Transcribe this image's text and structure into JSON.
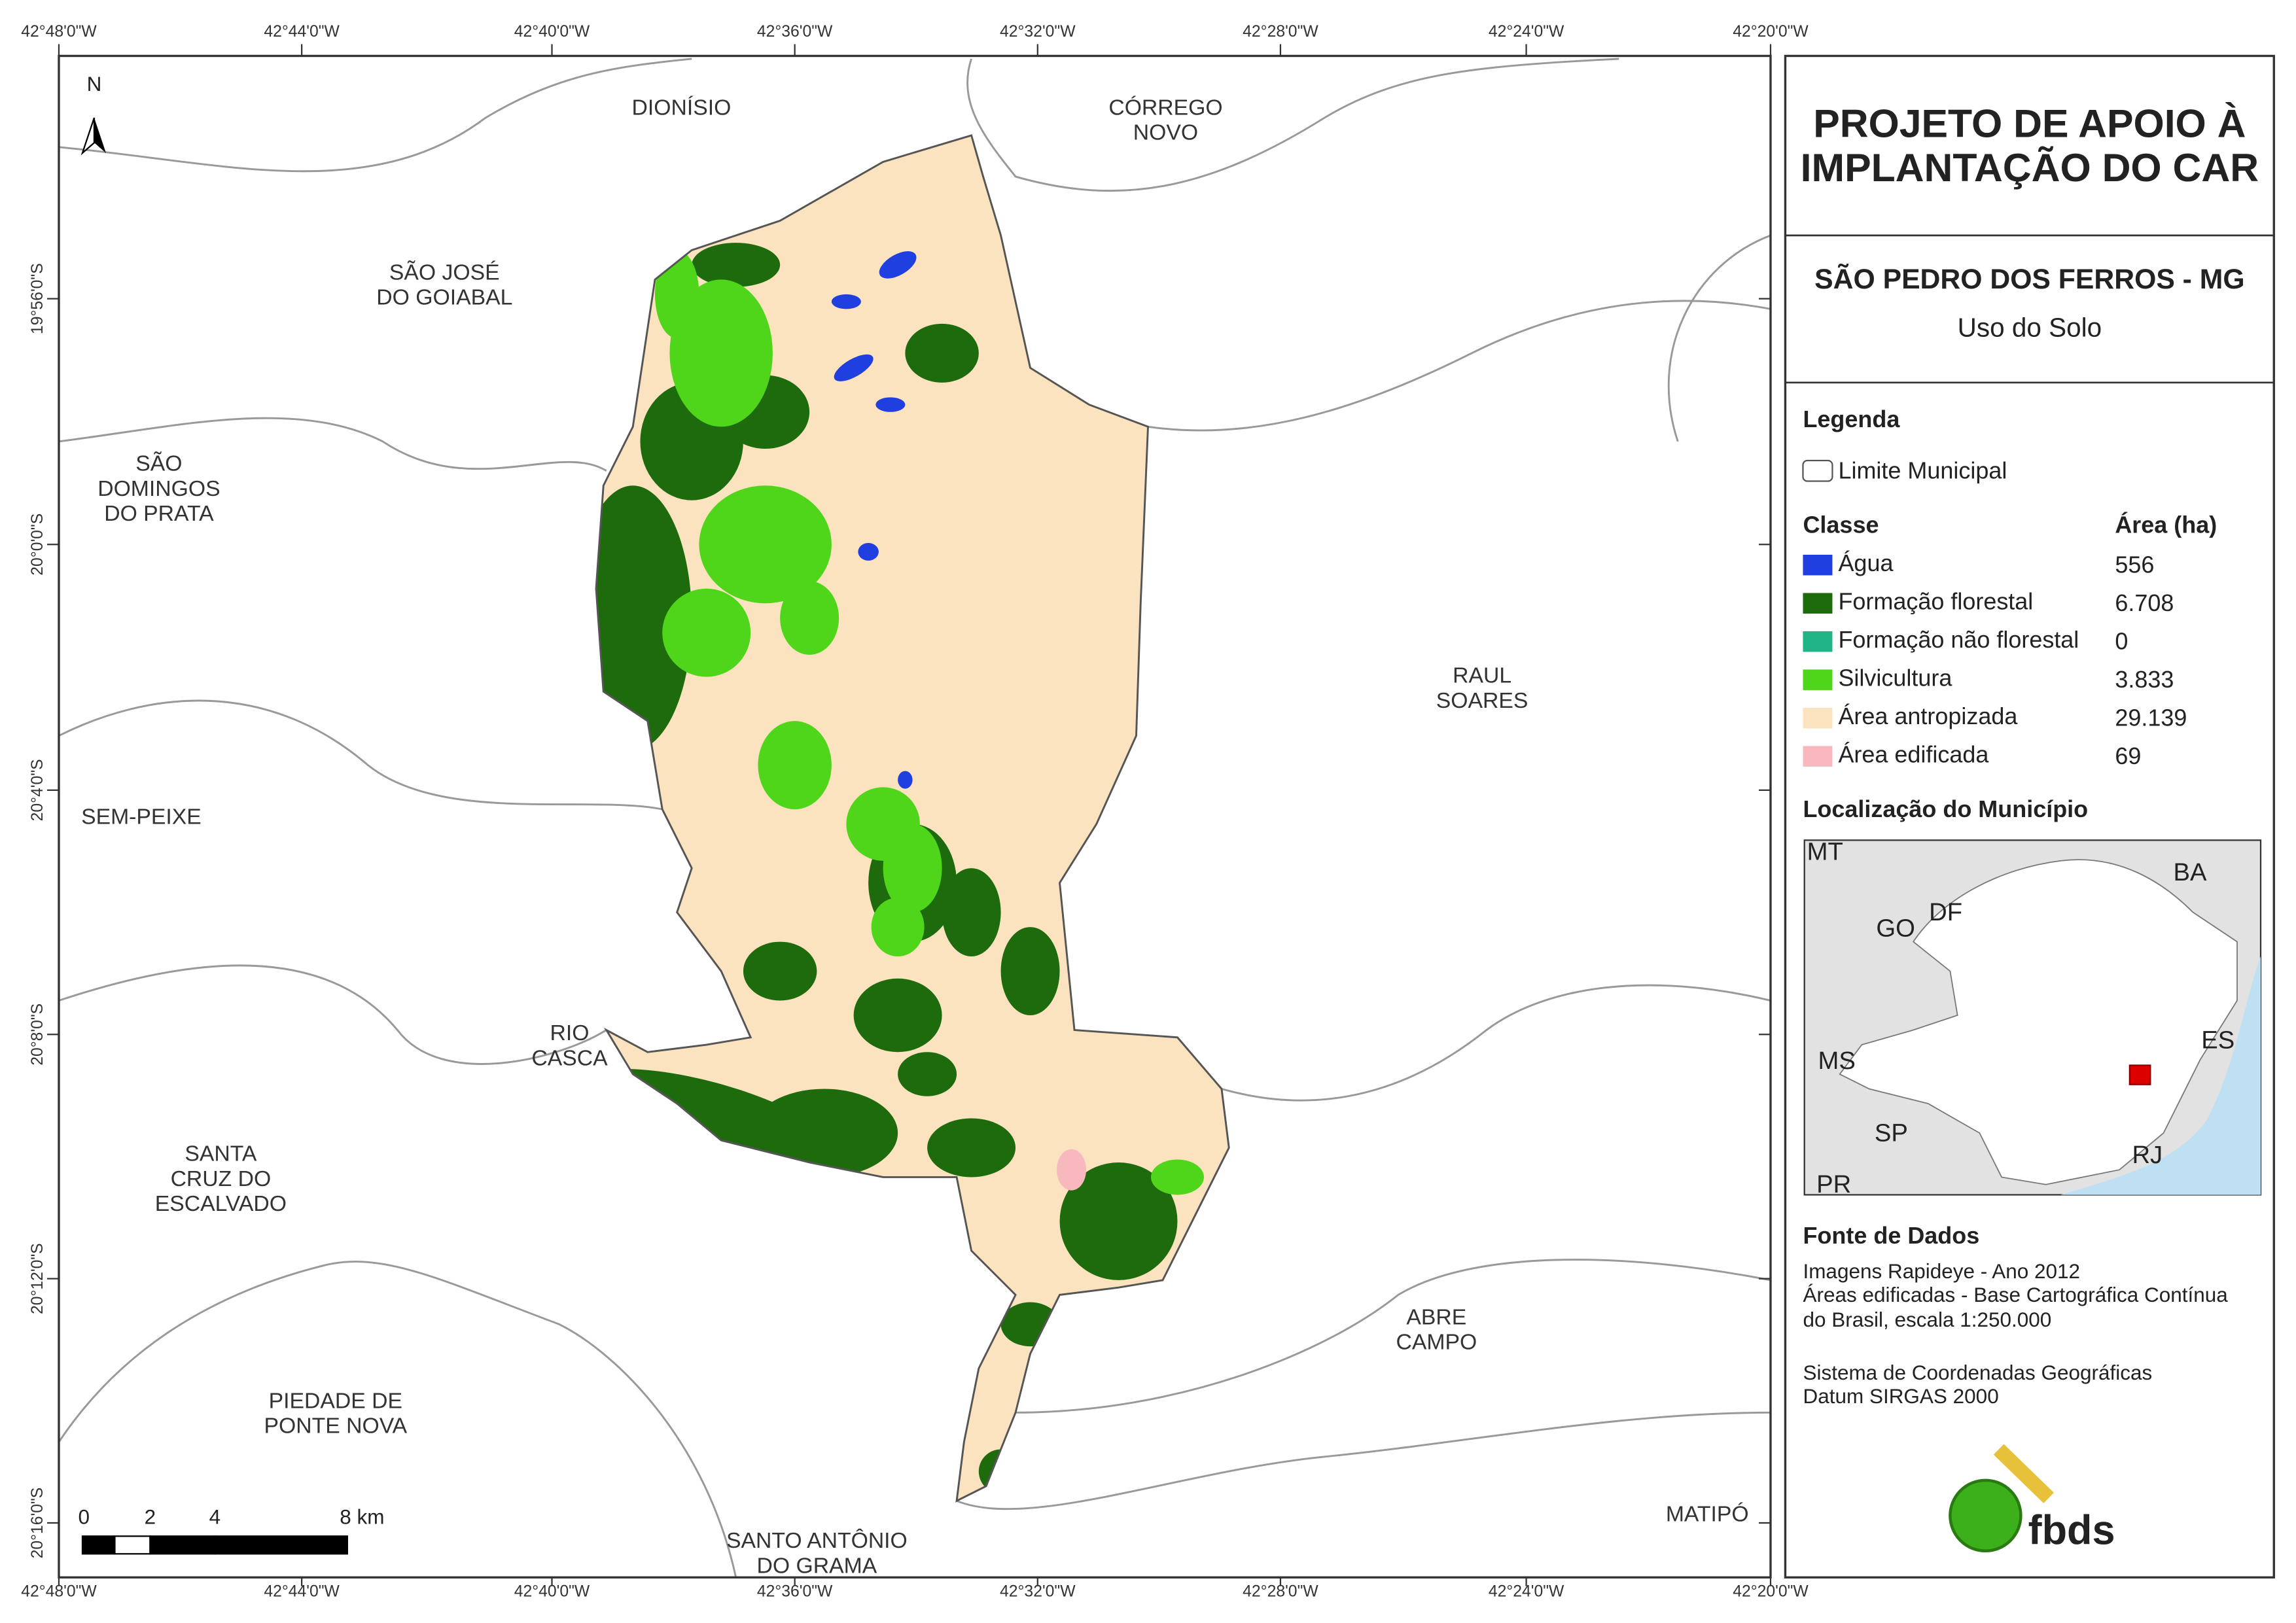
{
  "header": {
    "title": [
      "PROJETO DE APOIO À",
      "IMPLANTAÇÃO DO CAR"
    ],
    "municipality": "SÃO PEDRO DOS FERROS - MG",
    "theme": "Uso do Solo"
  },
  "legend": {
    "title": "Legenda",
    "boundary": "Limite Municipal",
    "class_header": "Classe",
    "area_header": "Área (ha)",
    "classes": [
      {
        "name": "Água",
        "color": "#1f3fe0",
        "area": "556"
      },
      {
        "name": "Formação florestal",
        "color": "#1e6b0e",
        "area": "6.708"
      },
      {
        "name": "Formação não florestal",
        "color": "#1fb385",
        "area": "0"
      },
      {
        "name": "Silvicultura",
        "color": "#4fd61a",
        "area": "3.833"
      },
      {
        "name": "Área antropizada",
        "color": "#fbe3c0",
        "area": "29.139"
      },
      {
        "name": "Área edificada",
        "color": "#f7b9bd",
        "area": "69"
      }
    ]
  },
  "location": {
    "title": "Localização do Município",
    "states": [
      "MT",
      "BA",
      "GO",
      "DF",
      "MS",
      "ES",
      "SP",
      "RJ",
      "PR"
    ]
  },
  "sources": {
    "title": "Fonte de Dados",
    "lines": [
      "Imagens Rapideye - Ano 2012",
      "Áreas edificadas - Base Cartográfica Contínua",
      "do Brasil, escala 1:250.000",
      "Sistema de Coordenadas Geográficas",
      "Datum SIRGAS 2000"
    ]
  },
  "logo": "fbds",
  "map": {
    "north": "N",
    "longitudes": [
      "42°48'0\"W",
      "42°44'0\"W",
      "42°40'0\"W",
      "42°36'0\"W",
      "42°32'0\"W",
      "42°28'0\"W",
      "42°24'0\"W",
      "42°20'0\"W"
    ],
    "latitudes": [
      "19°56'0\"S",
      "20°0'0\"S",
      "20°4'0\"S",
      "20°8'0\"S",
      "20°12'0\"S",
      "20°16'0\"S"
    ],
    "scale_labels": [
      "0",
      "2",
      "4",
      "8 km"
    ],
    "neighbors": [
      [
        "DIONÍSIO"
      ],
      [
        "CÓRREGO",
        "NOVO"
      ],
      [
        "SÃO JOSÉ",
        "DO GOIABAL"
      ],
      [
        "SÃO",
        "DOMINGOS",
        "DO PRATA"
      ],
      [
        "RAUL",
        "SOARES"
      ],
      [
        "SEM-PEIXE"
      ],
      [
        "RIO",
        "CASCA"
      ],
      [
        "SANTA",
        "CRUZ DO",
        "ESCALVADO"
      ],
      [
        "ABRE",
        "CAMPO"
      ],
      [
        "PIEDADE DE",
        "PONTE NOVA"
      ],
      [
        "SANTO ANTÔNIO",
        "DO GRAMA"
      ],
      [
        "MATIPÓ"
      ]
    ]
  }
}
